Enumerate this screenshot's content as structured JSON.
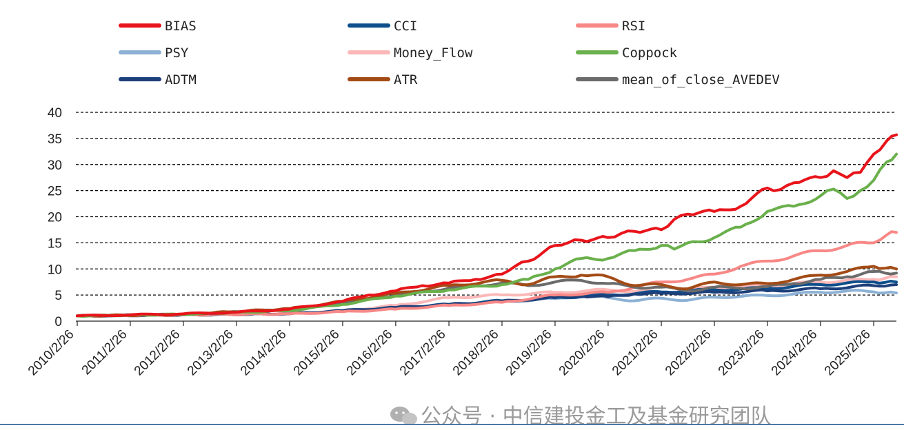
{
  "chart_data": {
    "type": "line",
    "title": "",
    "xlabel": "",
    "ylabel": "",
    "ylim": [
      0,
      40
    ],
    "yticks": [
      0,
      5,
      10,
      15,
      20,
      25,
      30,
      35,
      40
    ],
    "grid": "horizontal dashed",
    "legend_position": "top",
    "categories": [
      "2010/2/26",
      "2011/2/26",
      "2012/2/26",
      "2013/2/26",
      "2014/2/26",
      "2015/2/26",
      "2016/2/26",
      "2017/2/26",
      "2018/2/26",
      "2019/2/26",
      "2020/2/26",
      "2021/2/26",
      "2022/2/26",
      "2023/2/26",
      "2024/2/26",
      "2025/2/26"
    ],
    "x_end": "2025/8/29",
    "series": [
      {
        "name": "BIAS",
        "color": "#e8141b",
        "x": [
          "2010/2/26",
          "2011/2/26",
          "2012/2/26",
          "2013/2/26",
          "2014/2/26",
          "2015/2/26",
          "2015/8/26",
          "2016/2/26",
          "2016/8/26",
          "2017/2/26",
          "2017/8/26",
          "2018/2/26",
          "2018/5/26",
          "2018/8/26",
          "2019/2/26",
          "2019/5/26",
          "2019/8/26",
          "2020/2/26",
          "2020/5/26",
          "2020/8/26",
          "2021/2/26",
          "2021/5/26",
          "2021/8/26",
          "2022/2/26",
          "2022/8/26",
          "2023/2/26",
          "2023/5/26",
          "2023/8/26",
          "2024/2/26",
          "2024/5/26",
          "2024/8/26",
          "2024/11/26",
          "2025/2/26",
          "2025/5/26",
          "2025/8/29"
        ],
        "y": [
          1.0,
          1.2,
          1.4,
          1.7,
          2.3,
          3.8,
          5.0,
          5.8,
          6.8,
          7.3,
          8.0,
          9.0,
          10.5,
          11.5,
          14.5,
          15.0,
          15.5,
          16.0,
          16.8,
          17.2,
          17.5,
          19.5,
          20.5,
          21.0,
          22.0,
          25.5,
          25.2,
          26.5,
          27.5,
          28.8,
          27.5,
          28.5,
          32.0,
          34.5,
          35.7
        ]
      },
      {
        "name": "CCI",
        "color": "#0d4f8b",
        "x": [
          "2010/2/26",
          "2012/2/26",
          "2014/2/26",
          "2015/2/26",
          "2016/2/26",
          "2017/2/26",
          "2018/2/26",
          "2019/2/26",
          "2020/2/26",
          "2021/2/26",
          "2022/2/26",
          "2023/2/26",
          "2024/2/26",
          "2025/2/26",
          "2025/8/29"
        ],
        "y": [
          1.0,
          1.2,
          1.4,
          2.0,
          2.6,
          3.2,
          3.9,
          4.5,
          5.0,
          5.6,
          6.0,
          6.3,
          7.0,
          7.5,
          7.5
        ]
      },
      {
        "name": "RSI",
        "color": "#f78886",
        "x": [
          "2010/2/26",
          "2012/2/26",
          "2014/2/26",
          "2015/2/26",
          "2016/2/26",
          "2017/2/26",
          "2018/2/26",
          "2019/2/26",
          "2020/2/26",
          "2020/8/26",
          "2021/2/26",
          "2021/8/26",
          "2022/2/26",
          "2022/8/26",
          "2023/2/26",
          "2023/8/26",
          "2024/2/26",
          "2024/8/26",
          "2025/2/26",
          "2025/5/26",
          "2025/8/29"
        ],
        "y": [
          1.0,
          1.2,
          1.4,
          1.8,
          2.3,
          3.0,
          3.6,
          5.0,
          5.5,
          6.5,
          7.5,
          8.0,
          9.0,
          10.5,
          11.5,
          12.5,
          13.5,
          14.5,
          15.0,
          16.5,
          17.0
        ]
      },
      {
        "name": "PSY",
        "color": "#8cb1d5",
        "x": [
          "2010/2/26",
          "2012/2/26",
          "2014/2/26",
          "2015/2/26",
          "2016/2/26",
          "2017/2/26",
          "2018/2/26",
          "2019/2/26",
          "2019/8/26",
          "2020/2/26",
          "2020/8/26",
          "2021/2/26",
          "2021/8/26",
          "2022/2/26",
          "2023/2/26",
          "2024/2/26",
          "2024/8/26",
          "2025/2/26",
          "2025/8/29"
        ],
        "y": [
          1.0,
          1.2,
          1.4,
          2.0,
          2.5,
          3.0,
          3.7,
          4.3,
          4.8,
          4.5,
          3.9,
          4.4,
          4.0,
          4.6,
          4.9,
          5.5,
          5.8,
          5.6,
          5.4
        ]
      },
      {
        "name": "Money_Flow",
        "color": "#fbb8b8",
        "x": [
          "2010/2/26",
          "2012/2/26",
          "2014/2/26",
          "2015/2/26",
          "2016/2/26",
          "2017/2/26",
          "2018/2/26",
          "2019/2/26",
          "2020/2/26",
          "2021/2/26",
          "2022/2/26",
          "2023/2/26",
          "2024/2/26",
          "2025/2/26",
          "2025/8/29"
        ],
        "y": [
          1.0,
          1.2,
          1.5,
          2.0,
          3.0,
          4.5,
          5.0,
          5.5,
          6.0,
          5.5,
          6.5,
          6.8,
          7.5,
          8.0,
          8.5
        ]
      },
      {
        "name": "Coppock",
        "color": "#6ab04c",
        "x": [
          "2010/2/26",
          "2012/2/26",
          "2014/2/26",
          "2015/2/26",
          "2016/2/26",
          "2017/2/26",
          "2018/2/26",
          "2018/8/26",
          "2019/2/26",
          "2019/8/26",
          "2020/2/26",
          "2020/8/26",
          "2021/2/26",
          "2021/5/26",
          "2021/8/26",
          "2022/2/26",
          "2022/8/26",
          "2023/2/26",
          "2023/8/26",
          "2024/2/26",
          "2024/5/26",
          "2024/8/26",
          "2024/11/26",
          "2025/2/26",
          "2025/5/26",
          "2025/8/29"
        ],
        "y": [
          1.0,
          1.3,
          2.0,
          3.2,
          4.8,
          6.0,
          7.0,
          8.0,
          10.0,
          12.0,
          12.0,
          13.5,
          14.5,
          13.8,
          15.0,
          16.0,
          18.0,
          21.0,
          22.0,
          24.0,
          25.3,
          23.5,
          25.0,
          27.0,
          30.5,
          32.0
        ]
      },
      {
        "name": "ADTM",
        "color": "#1d3f7a",
        "x": [
          "2010/2/26",
          "2012/2/26",
          "2014/2/26",
          "2015/2/26",
          "2016/2/26",
          "2017/2/26",
          "2018/2/26",
          "2019/2/26",
          "2019/8/26",
          "2020/2/26",
          "2020/8/26",
          "2021/2/26",
          "2022/2/26",
          "2023/2/26",
          "2024/2/26",
          "2025/2/26",
          "2025/8/29"
        ],
        "y": [
          1.0,
          1.2,
          1.4,
          2.0,
          2.6,
          3.2,
          3.8,
          4.5,
          4.8,
          4.7,
          5.2,
          5.3,
          5.5,
          5.8,
          6.2,
          6.8,
          7.0
        ]
      },
      {
        "name": "ATR",
        "color": "#a34b16",
        "x": [
          "2010/2/26",
          "2012/2/26",
          "2014/2/26",
          "2015/2/26",
          "2016/2/26",
          "2017/2/26",
          "2018/2/26",
          "2018/8/26",
          "2019/2/26",
          "2019/8/26",
          "2020/2/26",
          "2020/8/26",
          "2021/2/26",
          "2021/8/26",
          "2022/2/26",
          "2022/8/26",
          "2023/2/26",
          "2023/8/26",
          "2024/2/26",
          "2024/8/26",
          "2025/2/26",
          "2025/8/29"
        ],
        "y": [
          1.0,
          1.3,
          2.4,
          3.8,
          5.3,
          6.8,
          7.8,
          7.0,
          8.5,
          8.8,
          8.5,
          6.8,
          7.0,
          6.2,
          7.5,
          7.0,
          7.2,
          8.0,
          8.8,
          9.5,
          10.5,
          10.0
        ]
      },
      {
        "name": "mean_of_close_AVEDEV",
        "color": "#6b6b6b",
        "x": [
          "2010/2/26",
          "2012/2/26",
          "2014/2/26",
          "2015/2/26",
          "2016/2/26",
          "2017/2/26",
          "2018/2/26",
          "2018/8/26",
          "2019/2/26",
          "2019/8/26",
          "2020/2/26",
          "2020/8/26",
          "2021/2/26",
          "2021/8/26",
          "2022/2/26",
          "2022/8/26",
          "2023/2/26",
          "2023/8/26",
          "2024/2/26",
          "2024/8/26",
          "2025/2/26",
          "2025/8/29"
        ],
        "y": [
          1.0,
          1.3,
          2.2,
          3.5,
          5.0,
          6.3,
          7.3,
          6.8,
          7.5,
          7.8,
          7.2,
          6.5,
          6.5,
          5.8,
          6.5,
          6.3,
          6.6,
          7.2,
          8.0,
          8.5,
          9.5,
          9.2
        ]
      }
    ]
  },
  "watermark": {
    "text": "公众号 · 中信建投金工及基金研究团队",
    "icon": "wechat-icon"
  }
}
